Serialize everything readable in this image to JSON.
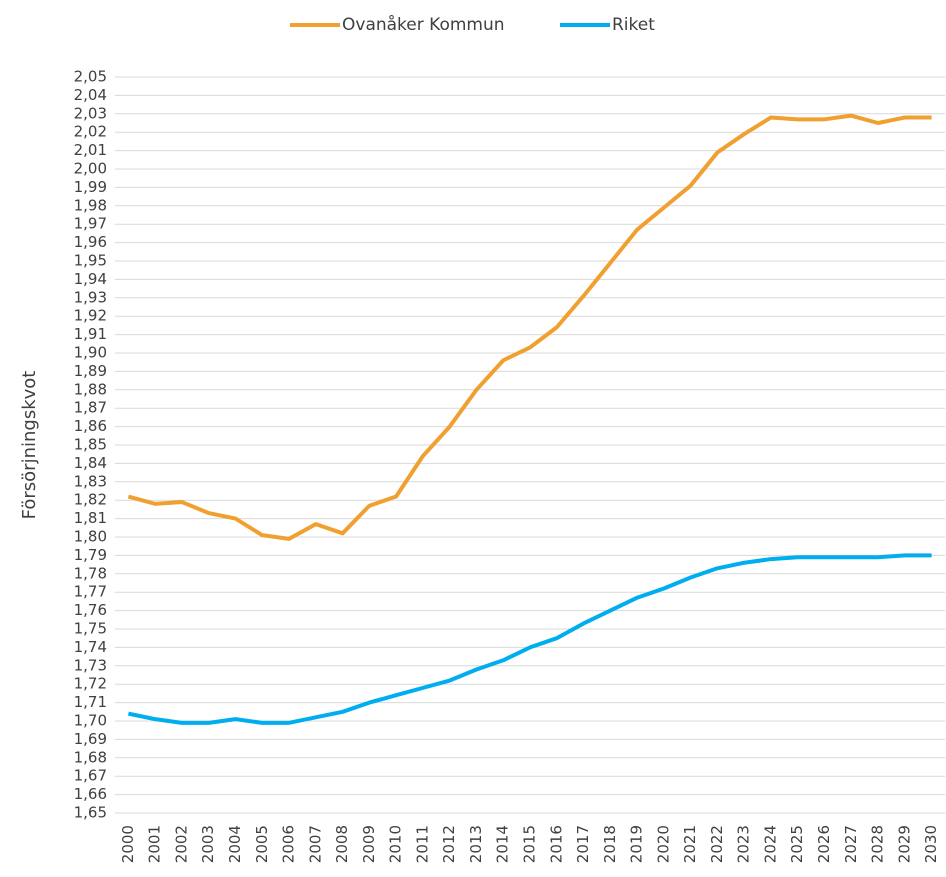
{
  "chart_data": {
    "type": "line",
    "ylabel": "Försörjningskvot",
    "categories": [
      "2000",
      "2001",
      "2002",
      "2003",
      "2004",
      "2005",
      "2006",
      "2007",
      "2008",
      "2009",
      "2010",
      "2011",
      "2012",
      "2013",
      "2014",
      "2015",
      "2016",
      "2017",
      "2018",
      "2019",
      "2020",
      "2021",
      "2022",
      "2023",
      "2024",
      "2025",
      "2026",
      "2027",
      "2028",
      "2029",
      "2030"
    ],
    "series": [
      {
        "name": "Ovanåker Kommun",
        "color": "#f0a030",
        "values": [
          1.822,
          1.818,
          1.819,
          1.813,
          1.81,
          1.801,
          1.799,
          1.807,
          1.802,
          1.817,
          1.822,
          1.844,
          1.86,
          1.88,
          1.896,
          1.903,
          1.914,
          1.931,
          1.949,
          1.967,
          1.979,
          1.991,
          2.009,
          2.019,
          2.028,
          2.027,
          2.027,
          2.029,
          2.025,
          2.028,
          2.028
        ]
      },
      {
        "name": "Riket",
        "color": "#00aeef",
        "values": [
          1.704,
          1.701,
          1.699,
          1.699,
          1.701,
          1.699,
          1.699,
          1.702,
          1.705,
          1.71,
          1.714,
          1.718,
          1.722,
          1.728,
          1.733,
          1.74,
          1.745,
          1.753,
          1.76,
          1.767,
          1.772,
          1.778,
          1.783,
          1.786,
          1.788,
          1.789,
          1.789,
          1.789,
          1.789,
          1.79,
          1.79
        ]
      }
    ],
    "ylim": [
      1.65,
      2.05
    ],
    "yticks": [
      {
        "value": 1.65,
        "label": "1,65"
      },
      {
        "value": 1.66,
        "label": "1,66"
      },
      {
        "value": 1.67,
        "label": "1,67"
      },
      {
        "value": 1.68,
        "label": "1,68"
      },
      {
        "value": 1.69,
        "label": "1,69"
      },
      {
        "value": 1.7,
        "label": "1,70"
      },
      {
        "value": 1.71,
        "label": "1,71"
      },
      {
        "value": 1.72,
        "label": "1,72"
      },
      {
        "value": 1.73,
        "label": "1,73"
      },
      {
        "value": 1.74,
        "label": "1,74"
      },
      {
        "value": 1.75,
        "label": "1,75"
      },
      {
        "value": 1.76,
        "label": "1,76"
      },
      {
        "value": 1.77,
        "label": "1,77"
      },
      {
        "value": 1.78,
        "label": "1,78"
      },
      {
        "value": 1.79,
        "label": "1,79"
      },
      {
        "value": 1.8,
        "label": "1,80"
      },
      {
        "value": 1.81,
        "label": "1,81"
      },
      {
        "value": 1.82,
        "label": "1,82"
      },
      {
        "value": 1.83,
        "label": "1,83"
      },
      {
        "value": 1.84,
        "label": "1,84"
      },
      {
        "value": 1.85,
        "label": "1,85"
      },
      {
        "value": 1.86,
        "label": "1,86"
      },
      {
        "value": 1.87,
        "label": "1,87"
      },
      {
        "value": 1.88,
        "label": "1,88"
      },
      {
        "value": 1.89,
        "label": "1,89"
      },
      {
        "value": 1.9,
        "label": "1,90"
      },
      {
        "value": 1.91,
        "label": "1,91"
      },
      {
        "value": 1.92,
        "label": "1,92"
      },
      {
        "value": 1.93,
        "label": "1,93"
      },
      {
        "value": 1.94,
        "label": "1,94"
      },
      {
        "value": 1.95,
        "label": "1,95"
      },
      {
        "value": 1.96,
        "label": "1,96"
      },
      {
        "value": 1.97,
        "label": "1,97"
      },
      {
        "value": 1.98,
        "label": "1,98"
      },
      {
        "value": 1.99,
        "label": "1,99"
      },
      {
        "value": 2.0,
        "label": "2,00"
      },
      {
        "value": 2.01,
        "label": "2,01"
      },
      {
        "value": 2.02,
        "label": "2,02"
      },
      {
        "value": 2.03,
        "label": "2,03"
      },
      {
        "value": 2.04,
        "label": "2,04"
      },
      {
        "value": 2.05,
        "label": "2,05"
      }
    ],
    "grid": true,
    "legend": "top"
  }
}
